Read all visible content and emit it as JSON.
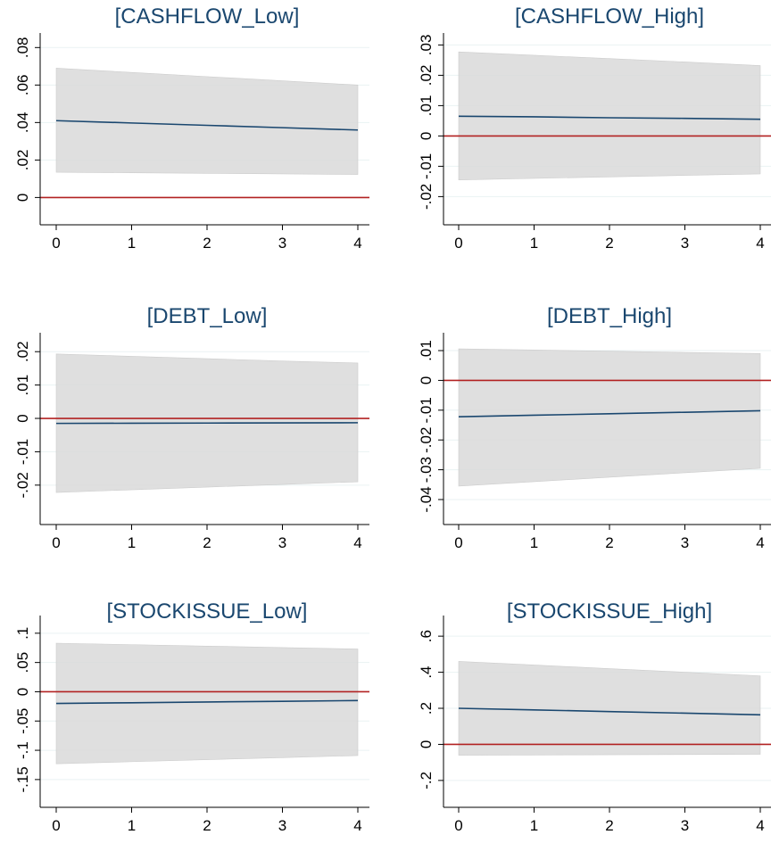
{
  "chart_data": [
    {
      "type": "area",
      "title": "[CASHFLOW_Low]",
      "x": [
        0,
        1,
        2,
        3,
        4
      ],
      "xticks": [
        "0",
        "1",
        "2",
        "3",
        "4"
      ],
      "xlim": [
        0,
        4
      ],
      "ylim": [
        -0.006,
        0.083
      ],
      "yticks": [
        0,
        0.02,
        0.04,
        0.06,
        0.08
      ],
      "ytick_labels": [
        "0",
        ".02",
        ".04",
        ".06",
        ".08"
      ],
      "series": [
        {
          "role": "irf",
          "values": [
            0.041,
            0.03975,
            0.0385,
            0.03725,
            0.036
          ]
        },
        {
          "role": "ci_lower",
          "values": [
            0.0135,
            0.0132,
            0.0129,
            0.0126,
            0.0123
          ]
        },
        {
          "role": "ci_upper",
          "values": [
            0.069,
            0.06675,
            0.0645,
            0.06225,
            0.06
          ]
        }
      ],
      "reference_line": 0,
      "grid": true
    },
    {
      "type": "area",
      "title": "[CASHFLOW_High]",
      "x": [
        0,
        1,
        2,
        3,
        4
      ],
      "xticks": [
        "0",
        "1",
        "2",
        "3",
        "4"
      ],
      "xlim": [
        0,
        4
      ],
      "ylim": [
        -0.024,
        0.031
      ],
      "yticks": [
        -0.02,
        -0.01,
        0,
        0.01,
        0.02,
        0.03
      ],
      "ytick_labels": [
        "-.02",
        "-.01",
        "0",
        ".01",
        ".02",
        ".03"
      ],
      "series": [
        {
          "role": "irf",
          "values": [
            0.0065,
            0.0063,
            0.006,
            0.0058,
            0.0055
          ]
        },
        {
          "role": "ci_lower",
          "values": [
            -0.0145,
            -0.014,
            -0.0135,
            -0.013,
            -0.0125
          ]
        },
        {
          "role": "ci_upper",
          "values": [
            0.0277,
            0.0266,
            0.0255,
            0.0244,
            0.0232
          ]
        }
      ],
      "reference_line": 0,
      "grid": true
    },
    {
      "type": "area",
      "title": "[DEBT_Low]",
      "x": [
        0,
        1,
        2,
        3,
        4
      ],
      "xticks": [
        "0",
        "1",
        "2",
        "3",
        "4"
      ],
      "xlim": [
        0,
        4
      ],
      "ylim": [
        -0.027,
        0.023
      ],
      "yticks": [
        -0.02,
        -0.01,
        0,
        0.01,
        0.02
      ],
      "ytick_labels": [
        "-.02",
        "-.01",
        "0",
        ".01",
        ".02"
      ],
      "series": [
        {
          "role": "irf",
          "values": [
            -0.0015,
            -0.00145,
            -0.0014,
            -0.00135,
            -0.0013
          ]
        },
        {
          "role": "ci_lower",
          "values": [
            -0.0222,
            -0.0214,
            -0.0206,
            -0.0198,
            -0.019
          ]
        },
        {
          "role": "ci_upper",
          "values": [
            0.0193,
            0.0186,
            0.0179,
            0.0172,
            0.0166
          ]
        }
      ],
      "reference_line": 0,
      "grid": true
    },
    {
      "type": "area",
      "title": "[DEBT_High]",
      "x": [
        0,
        1,
        2,
        3,
        4
      ],
      "xticks": [
        "0",
        "1",
        "2",
        "3",
        "4"
      ],
      "xlim": [
        0,
        4
      ],
      "ylim": [
        -0.043,
        0.013
      ],
      "yticks": [
        -0.04,
        -0.03,
        -0.02,
        -0.01,
        0,
        0.01
      ],
      "ytick_labels": [
        "-.04",
        "-.03",
        "-.02",
        "-.01",
        "0",
        ".01"
      ],
      "series": [
        {
          "role": "irf",
          "values": [
            -0.0122,
            -0.0117,
            -0.0112,
            -0.0107,
            -0.0102
          ]
        },
        {
          "role": "ci_lower",
          "values": [
            -0.0355,
            -0.034,
            -0.0325,
            -0.031,
            -0.0295
          ]
        },
        {
          "role": "ci_upper",
          "values": [
            0.0106,
            0.0102,
            0.0098,
            0.0094,
            0.009
          ]
        }
      ],
      "reference_line": 0,
      "grid": true
    },
    {
      "type": "area",
      "title": "[STOCKISSUE_Low]",
      "x": [
        0,
        1,
        2,
        3,
        4
      ],
      "xticks": [
        "0",
        "1",
        "2",
        "3",
        "4"
      ],
      "xlim": [
        0,
        4
      ],
      "ylim": [
        -0.17,
        0.115
      ],
      "yticks": [
        -0.15,
        -0.1,
        -0.05,
        0,
        0.05,
        0.1
      ],
      "ytick_labels": [
        "-.15",
        "-.1",
        "-.05",
        "0",
        ".05",
        ".1"
      ],
      "series": [
        {
          "role": "irf",
          "values": [
            -0.02,
            -0.0188,
            -0.0175,
            -0.0163,
            -0.015
          ]
        },
        {
          "role": "ci_lower",
          "values": [
            -0.123,
            -0.1195,
            -0.116,
            -0.1125,
            -0.109
          ]
        },
        {
          "role": "ci_upper",
          "values": [
            0.083,
            0.0805,
            0.078,
            0.0755,
            0.073
          ]
        }
      ],
      "reference_line": 0,
      "grid": true
    },
    {
      "type": "area",
      "title": "[STOCKISSUE_High]",
      "x": [
        0,
        1,
        2,
        3,
        4
      ],
      "xticks": [
        "0",
        "1",
        "2",
        "3",
        "4"
      ],
      "xlim": [
        0,
        4
      ],
      "ylim": [
        -0.26,
        0.665
      ],
      "yticks": [
        -0.2,
        0,
        0.2,
        0.4,
        0.6
      ],
      "ytick_labels": [
        "-.2",
        "0",
        ".2",
        ".4",
        ".6"
      ],
      "series": [
        {
          "role": "irf",
          "values": [
            0.2,
            0.191,
            0.182,
            0.173,
            0.164
          ]
        },
        {
          "role": "ci_lower",
          "values": [
            -0.06,
            -0.0588,
            -0.0575,
            -0.0563,
            -0.055
          ]
        },
        {
          "role": "ci_upper",
          "values": [
            0.46,
            0.44,
            0.42,
            0.4,
            0.38
          ]
        }
      ],
      "reference_line": 0,
      "grid": true
    }
  ],
  "colors": {
    "title": "#1a476f",
    "irf_line": "#1a476f",
    "ci_band": "#d9d9d9",
    "reference_line": "#b22222",
    "grid": "#eaf2f3"
  }
}
